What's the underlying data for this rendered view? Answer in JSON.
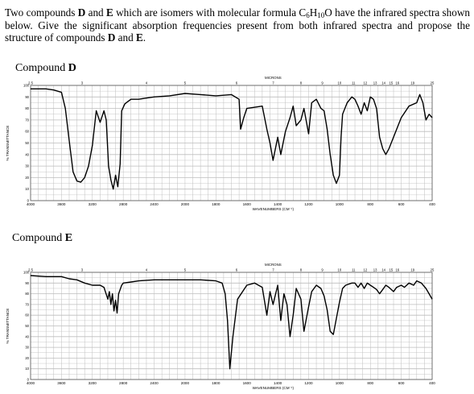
{
  "question": {
    "part1": "Two compounds ",
    "d": "D",
    "part2": " and ",
    "e": "E",
    "part3": " which are isomers with molecular formula C",
    "f1": "6",
    "part4": "H",
    "f2": "10",
    "part5": "O have the infrared spectra shown below. Give the significant absorption frequencies present from both infrared spectra and propose the structure of compounds ",
    "d2": "D",
    "part6": " and ",
    "e2": "E",
    "part7": "."
  },
  "spectra": [
    {
      "label_prefix": "Compound ",
      "label_letter": "D",
      "microns_label": "MICRONS",
      "xlabel": "WAVENUMBERS (CM⁻¹)",
      "ylabel": "% TRANSMITTANCE",
      "line_color": "#000000",
      "grid_color": "#bdbdbd"
    },
    {
      "label_prefix": "Compound ",
      "label_letter": "E",
      "microns_label": "MICRONS",
      "xlabel": "WAVENUMBERS (CM⁻¹)",
      "ylabel": "% TRANSMITTANCE",
      "line_color": "#000000",
      "grid_color": "#bdbdbd"
    }
  ],
  "chart_data": [
    {
      "type": "line",
      "title": "Compound D",
      "xlabel": "WAVENUMBERS (CM⁻¹)",
      "ylabel": "% TRANSMITTANCE",
      "xlim": [
        4000,
        400
      ],
      "ylim": [
        0,
        100
      ],
      "x_ticks": [
        4000,
        3600,
        3200,
        2800,
        2400,
        2000,
        1800,
        1600,
        1400,
        1200,
        1000,
        800,
        600,
        400
      ],
      "y_ticks": [
        0,
        10,
        20,
        30,
        40,
        50,
        60,
        70,
        80,
        90,
        100
      ],
      "microns_ticks": [
        "2.5",
        "3",
        "4",
        "5",
        "6",
        "7",
        "8",
        "9",
        "10",
        "11",
        "12",
        "13",
        "14",
        "15",
        "16",
        "19",
        "25"
      ],
      "series": [
        {
          "x": [
            4000,
            3800,
            3700,
            3600,
            3550,
            3500,
            3450,
            3400,
            3350,
            3300,
            3250,
            3200,
            3150,
            3100,
            3050,
            3020,
            2990,
            2960,
            2930,
            2900,
            2870,
            2840,
            2820,
            2780,
            2740,
            2700,
            2600,
            2500,
            2400,
            2200,
            2000,
            1900,
            1800,
            1700,
            1650,
            1640,
            1620,
            1600,
            1500,
            1470,
            1450,
            1430,
            1400,
            1380,
            1350,
            1320,
            1300,
            1280,
            1250,
            1230,
            1200,
            1180,
            1150,
            1120,
            1100,
            1080,
            1060,
            1040,
            1020,
            1000,
            990,
            980,
            950,
            920,
            900,
            880,
            860,
            840,
            820,
            800,
            780,
            760,
            740,
            720,
            700,
            680,
            650,
            600,
            550,
            500,
            480,
            460,
            440,
            420,
            400
          ],
          "y": [
            97,
            97,
            96,
            94,
            80,
            52,
            25,
            17,
            16,
            20,
            30,
            48,
            78,
            68,
            78,
            70,
            30,
            18,
            10,
            22,
            12,
            32,
            78,
            84,
            86,
            88,
            88,
            89,
            90,
            91,
            93,
            92,
            91,
            92,
            88,
            62,
            72,
            80,
            82,
            62,
            50,
            35,
            55,
            40,
            60,
            72,
            82,
            65,
            70,
            80,
            58,
            85,
            88,
            80,
            78,
            62,
            40,
            22,
            15,
            22,
            55,
            75,
            85,
            90,
            88,
            82,
            75,
            85,
            78,
            90,
            88,
            80,
            55,
            45,
            40,
            45,
            55,
            72,
            82,
            85,
            92,
            85,
            70,
            75,
            72
          ]
        }
      ]
    },
    {
      "type": "line",
      "title": "Compound E",
      "xlabel": "WAVENUMBERS (CM⁻¹)",
      "ylabel": "% TRANSMITTANCE",
      "xlim": [
        4000,
        400
      ],
      "ylim": [
        0,
        100
      ],
      "x_ticks": [
        4000,
        3600,
        3200,
        2800,
        2400,
        2000,
        1800,
        1600,
        1400,
        1200,
        1000,
        800,
        600,
        400
      ],
      "y_ticks": [
        0,
        10,
        20,
        30,
        40,
        50,
        60,
        70,
        80,
        90,
        100
      ],
      "microns_ticks": [
        "2.5",
        "3",
        "4",
        "5",
        "6",
        "7",
        "8",
        "9",
        "10",
        "11",
        "12",
        "13",
        "14",
        "15",
        "16",
        "19",
        "25"
      ],
      "series": [
        {
          "x": [
            4000,
            3800,
            3600,
            3500,
            3400,
            3300,
            3200,
            3100,
            3050,
            3000,
            2980,
            2960,
            2940,
            2920,
            2900,
            2880,
            2860,
            2840,
            2820,
            2800,
            2700,
            2600,
            2400,
            2200,
            2000,
            1900,
            1800,
            1760,
            1740,
            1725,
            1710,
            1690,
            1660,
            1600,
            1550,
            1500,
            1470,
            1450,
            1430,
            1400,
            1380,
            1360,
            1340,
            1320,
            1300,
            1280,
            1250,
            1230,
            1200,
            1180,
            1150,
            1120,
            1100,
            1080,
            1060,
            1040,
            1000,
            980,
            960,
            940,
            920,
            900,
            880,
            860,
            840,
            820,
            800,
            780,
            760,
            740,
            720,
            700,
            680,
            650,
            630,
            600,
            580,
            550,
            520,
            500,
            470,
            440,
            420,
            400
          ],
          "y": [
            97,
            96,
            96,
            94,
            93,
            90,
            88,
            88,
            86,
            75,
            82,
            70,
            80,
            64,
            74,
            62,
            80,
            84,
            88,
            90,
            91,
            92,
            93,
            93,
            93,
            93,
            92,
            90,
            80,
            55,
            10,
            40,
            75,
            88,
            90,
            86,
            60,
            82,
            70,
            88,
            55,
            80,
            70,
            40,
            60,
            85,
            75,
            45,
            68,
            82,
            88,
            85,
            78,
            65,
            45,
            42,
            72,
            85,
            88,
            89,
            90,
            90,
            86,
            90,
            85,
            90,
            88,
            86,
            84,
            80,
            84,
            88,
            86,
            82,
            86,
            88,
            86,
            90,
            88,
            92,
            90,
            85,
            80,
            75
          ]
        }
      ]
    }
  ]
}
